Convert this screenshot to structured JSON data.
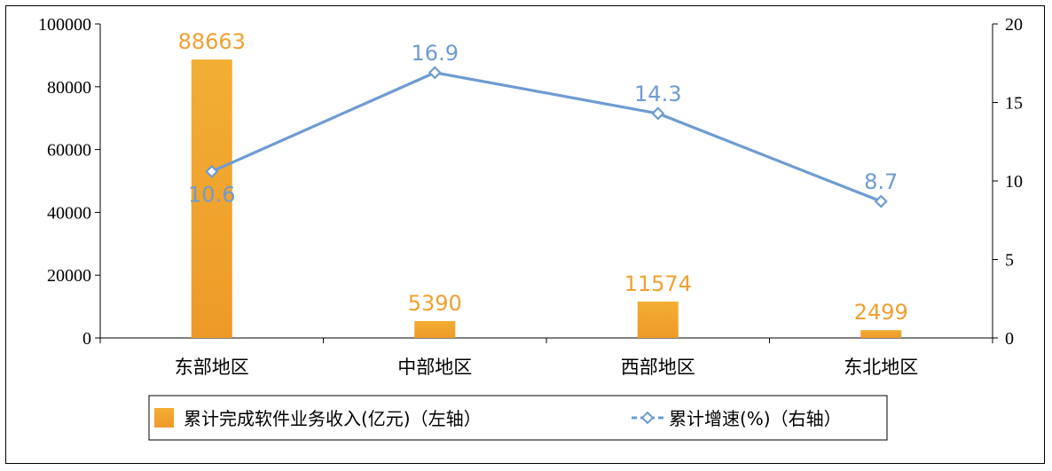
{
  "chart_data": {
    "type": "bar",
    "categories": [
      "东部地区",
      "中部地区",
      "西部地区",
      "东北地区"
    ],
    "series": [
      {
        "name": "累计完成软件业务收入(亿元)（左轴）",
        "type": "bar",
        "axis": "left",
        "values": [
          88663,
          5390,
          11574,
          2499
        ],
        "labels": [
          "88663",
          "5390",
          "11574",
          "2499"
        ],
        "color": "#F0A030"
      },
      {
        "name": "累计增速(%)（右轴）",
        "type": "line",
        "axis": "right",
        "values": [
          10.6,
          16.9,
          14.3,
          8.7
        ],
        "labels": [
          "10.6",
          "16.9",
          "14.3",
          "8.7"
        ],
        "color": "#6E9BD2"
      }
    ],
    "y_left": {
      "ylim": [
        0,
        100000
      ],
      "ticks": [
        "0",
        "20000",
        "40000",
        "60000",
        "80000",
        "100000"
      ]
    },
    "y_right": {
      "ylim": [
        0,
        20
      ],
      "ticks": [
        "0",
        "5",
        "10",
        "15",
        "20"
      ]
    },
    "grid": false,
    "legend_position": "bottom"
  }
}
